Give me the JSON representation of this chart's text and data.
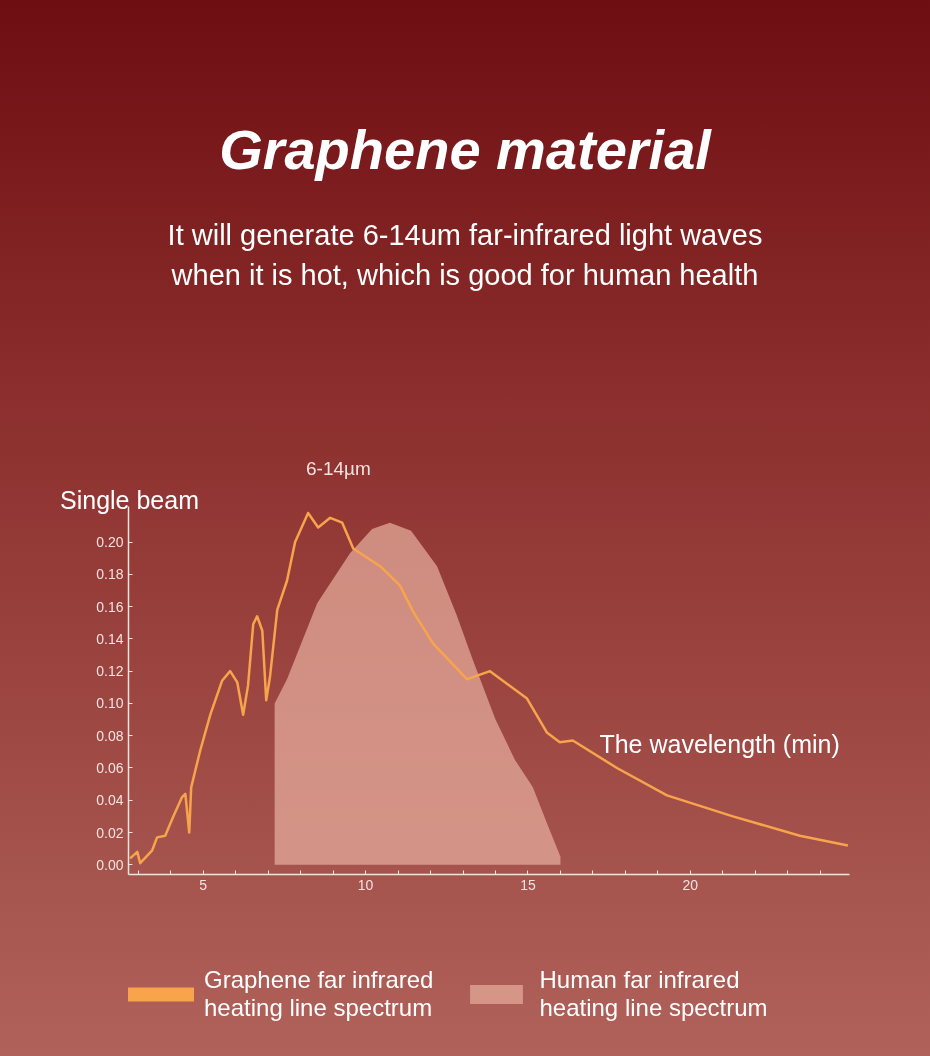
{
  "chart_data": {
    "type": "line",
    "title": "Graphene material",
    "subtitle": "It will generate 6-14um far-infrared light waves\nwhen it is hot, which is good for human health",
    "xlabel": "The wavelength (min)",
    "ylabel": "Single beam",
    "annotations": [
      "6-14µm"
    ],
    "xlim": [
      2.7,
      24.9
    ],
    "ylim": [
      -0.006,
      0.222
    ],
    "xticks": [
      {
        "value": 3,
        "label": null
      },
      {
        "value": 4,
        "label": null
      },
      5,
      {
        "value": 6,
        "label": null
      },
      {
        "value": 7,
        "label": null
      },
      {
        "value": 8,
        "label": null
      },
      {
        "value": 9,
        "label": null
      },
      10,
      {
        "value": 11,
        "label": null
      },
      {
        "value": 12,
        "label": null
      },
      {
        "value": 13,
        "label": null
      },
      {
        "value": 14,
        "label": null
      },
      15,
      {
        "value": 16,
        "label": null
      },
      {
        "value": 17,
        "label": null
      },
      {
        "value": 18,
        "label": null
      },
      {
        "value": 19,
        "label": null
      },
      20,
      {
        "value": 21,
        "label": null
      },
      {
        "value": 22,
        "label": null
      },
      {
        "value": 23,
        "label": null
      },
      {
        "value": 24,
        "label": null
      }
    ],
    "yticks": [
      {
        "value": 0,
        "label": "0.00"
      },
      {
        "value": 0.02,
        "label": "0.02"
      },
      {
        "value": 0.04,
        "label": "0.04"
      },
      {
        "value": 0.06,
        "label": "0.06"
      },
      {
        "value": 0.08,
        "label": "0.08"
      },
      {
        "value": 0.1,
        "label": "0.10"
      },
      {
        "value": 0.12,
        "label": "0.12"
      },
      {
        "value": 0.14,
        "label": "0.14"
      },
      {
        "value": 0.16,
        "label": "0.16"
      },
      {
        "value": 0.18,
        "label": "0.18"
      },
      {
        "value": 0.2,
        "label": "0.20"
      }
    ],
    "legend": "bottom",
    "series": [
      {
        "name": "Human far infrared\nheating line spectrum",
        "type": "area",
        "color": "#e3aa9a",
        "x": [
          7.2,
          7.58,
          8.51,
          9.52,
          10.2,
          10.75,
          11.4,
          12.2,
          12.8,
          13.3,
          14.0,
          14.6,
          15.15,
          15.6,
          16.0
        ],
        "values": [
          0.1,
          0.115,
          0.162,
          0.193,
          0.208,
          0.212,
          0.207,
          0.185,
          0.155,
          0.127,
          0.09,
          0.065,
          0.048,
          0.025,
          0.005
        ]
      },
      {
        "name": "Graphene far infrared\nheating line spectrum",
        "color": "#f7a44c",
        "x": [
          2.75,
          2.97,
          3.06,
          3.43,
          3.58,
          3.83,
          4.08,
          4.35,
          4.45,
          4.57,
          4.63,
          4.91,
          5.22,
          5.58,
          5.83,
          6.05,
          6.23,
          6.38,
          6.54,
          6.66,
          6.82,
          6.94,
          7.06,
          7.28,
          7.58,
          7.83,
          8.23,
          8.54,
          8.91,
          9.28,
          9.62,
          9.92,
          10.45,
          11.06,
          11.46,
          12.08,
          13.12,
          13.83,
          14.97,
          15.58,
          15.98,
          16.38,
          17.74,
          19.28,
          21.31,
          23.37,
          24.85
        ],
        "values": [
          0.004,
          0.008,
          0.001,
          0.009,
          0.017,
          0.018,
          0.03,
          0.042,
          0.044,
          0.02,
          0.048,
          0.071,
          0.093,
          0.114,
          0.12,
          0.113,
          0.093,
          0.111,
          0.149,
          0.154,
          0.145,
          0.102,
          0.117,
          0.158,
          0.176,
          0.2,
          0.218,
          0.209,
          0.215,
          0.212,
          0.196,
          0.192,
          0.185,
          0.173,
          0.157,
          0.137,
          0.115,
          0.12,
          0.103,
          0.082,
          0.076,
          0.077,
          0.06,
          0.043,
          0.03,
          0.018,
          0.012
        ]
      }
    ]
  }
}
